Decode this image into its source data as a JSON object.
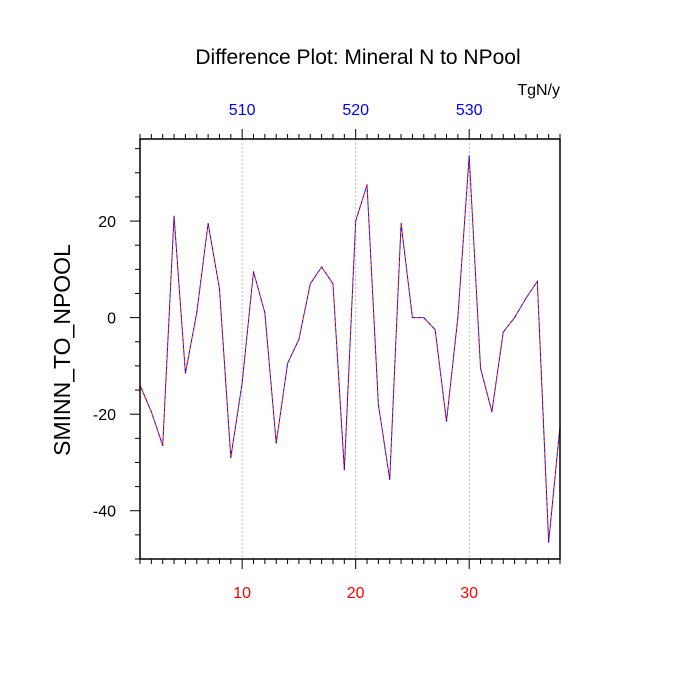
{
  "chart_data": {
    "type": "line",
    "title": "Difference Plot: Mineral N to NPool",
    "units_label": "TgN/y",
    "ylabel": "SMINN_TO_NPOOL",
    "xlabel": "",
    "xlim": [
      1,
      38
    ],
    "ylim": [
      -50,
      37
    ],
    "grid": "vertical dashed lines at bottom-axis major ticks",
    "bottom_axis": {
      "color": "#ff0000",
      "major_ticks": [
        10,
        20,
        30
      ],
      "tick_labels": [
        "10",
        "20",
        "30"
      ]
    },
    "top_axis": {
      "color": "#0000ff",
      "major_ticks": [
        510,
        520,
        530
      ],
      "tick_labels": [
        "510",
        "520",
        "530"
      ],
      "offset_from_bottom": 500
    },
    "left_axis": {
      "major_ticks": [
        20,
        0,
        -20,
        -40
      ],
      "tick_labels": [
        "20",
        "0",
        "-20",
        "-40"
      ]
    },
    "series": [
      {
        "colors": [
          "#ff0000",
          "#0000ff"
        ],
        "style": "dashed",
        "x": [
          1,
          2,
          3,
          4,
          5,
          6,
          7,
          8,
          9,
          10,
          11,
          12,
          13,
          14,
          15,
          16,
          17,
          18,
          19,
          20,
          21,
          22,
          23,
          24,
          25,
          26,
          27,
          28,
          29,
          30,
          31,
          32,
          33,
          34,
          35,
          36,
          37,
          38
        ],
        "values": [
          -14,
          -19.5,
          -26.5,
          21,
          -11.5,
          1,
          19.5,
          6,
          -29,
          -13.5,
          9.5,
          1,
          -26,
          -9.5,
          -4.5,
          7,
          10.5,
          7,
          -31.5,
          20,
          27.5,
          -18,
          -33.5,
          19.5,
          0,
          0,
          -2.5,
          -21.5,
          0,
          33.5,
          -10.5,
          -19.5,
          -3,
          0,
          4,
          7.5,
          -46.5,
          -22.5
        ]
      }
    ]
  }
}
